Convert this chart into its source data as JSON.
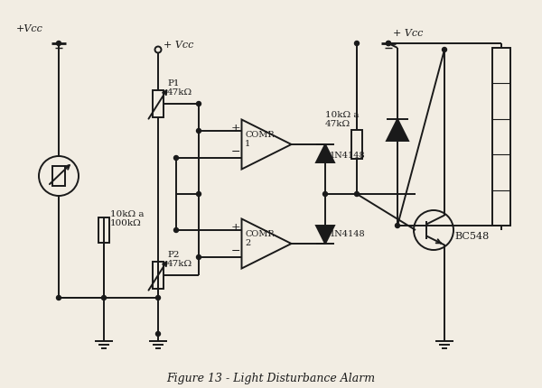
{
  "title": "Figure 13 - Light Disturbance Alarm",
  "bg_color": "#f2ede3",
  "line_color": "#1a1a1a",
  "labels": {
    "vcc_left": "+Vcc",
    "vcc_p1": "+ Vcc",
    "vcc_right": "+ Vcc",
    "p1": "P1\n47kΩ",
    "p2": "P2\n47kΩ",
    "r_ldr": "10kΩ a\n100kΩ",
    "r_comp": "10kΩ a\n47kΩ",
    "comp1": "COMP.\n1",
    "comp2": "COMP.\n2",
    "d1": "1N4148",
    "d2": "1N4148",
    "bc548": "BC548"
  }
}
